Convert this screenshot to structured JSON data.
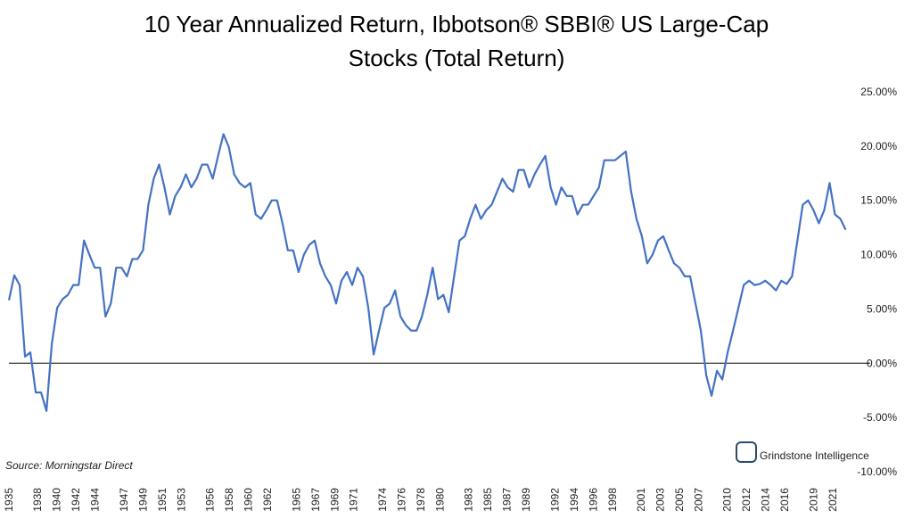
{
  "chart_data": {
    "type": "line",
    "title": "10 Year Annualized Return, Ibbotson® SBBI® US Large-Cap Stocks (Total Return)",
    "source": "Source: Morningstar Direct",
    "logo": "Grindstone Intelligence",
    "xlim": [
      1935,
      2022.5
    ],
    "xticks": [
      1935,
      1938,
      1940,
      1942,
      1944,
      1947,
      1949,
      1951,
      1953,
      1956,
      1958,
      1960,
      1962,
      1965,
      1967,
      1969,
      1971,
      1974,
      1976,
      1978,
      1980,
      1983,
      1985,
      1987,
      1989,
      1992,
      1994,
      1996,
      1998,
      2001,
      2003,
      2005,
      2007,
      2010,
      2012,
      2014,
      2016,
      2019,
      2021
    ],
    "ylim": [
      -10,
      25
    ],
    "yticks": [
      {
        "value": -10,
        "label": "-10.00%"
      },
      {
        "value": -5,
        "label": "-5.00%"
      },
      {
        "value": 0,
        "label": "0.00%"
      },
      {
        "value": 5,
        "label": "5.00%"
      },
      {
        "value": 10,
        "label": "10.00%"
      },
      {
        "value": 15,
        "label": "15.00%"
      },
      {
        "value": 20,
        "label": "20.00%"
      },
      {
        "value": 25,
        "label": "25.00%"
      }
    ],
    "zero_line": true,
    "series": [
      {
        "name": "10 Year Annualized Return",
        "color": "#4472c4",
        "x": [
          1935.0,
          1935.56,
          1936.12,
          1936.68,
          1937.24,
          1937.8,
          1938.36,
          1938.92,
          1939.48,
          1940.04,
          1940.6,
          1941.16,
          1941.72,
          1942.28,
          1942.84,
          1943.4,
          1943.96,
          1944.52,
          1945.08,
          1945.64,
          1946.2,
          1946.76,
          1947.32,
          1947.88,
          1948.44,
          1949.0,
          1949.56,
          1950.12,
          1950.68,
          1951.24,
          1951.8,
          1952.36,
          1952.92,
          1953.48,
          1954.04,
          1954.6,
          1955.16,
          1955.72,
          1956.28,
          1956.84,
          1957.4,
          1957.96,
          1958.52,
          1959.08,
          1959.64,
          1960.2,
          1960.76,
          1961.32,
          1961.88,
          1962.44,
          1963.0,
          1963.56,
          1964.12,
          1964.68,
          1965.24,
          1965.8,
          1966.36,
          1966.92,
          1967.48,
          1968.04,
          1968.6,
          1969.16,
          1969.72,
          1970.28,
          1970.84,
          1971.4,
          1971.96,
          1972.52,
          1973.08,
          1973.64,
          1974.2,
          1974.76,
          1975.32,
          1975.88,
          1976.44,
          1977.0,
          1977.56,
          1978.12,
          1978.68,
          1979.24,
          1979.8,
          1980.36,
          1980.92,
          1981.48,
          1982.04,
          1982.6,
          1983.16,
          1983.72,
          1984.28,
          1984.84,
          1985.4,
          1985.96,
          1986.52,
          1987.08,
          1987.64,
          1988.2,
          1988.76,
          1989.32,
          1989.88,
          1990.44,
          1991.0,
          1991.56,
          1992.12,
          1992.68,
          1993.24,
          1993.8,
          1994.36,
          1994.92,
          1995.48,
          1996.04,
          1996.6,
          1997.16,
          1997.72,
          1998.28,
          1998.84,
          1999.4,
          1999.96,
          2000.52,
          2001.08,
          2001.64,
          2002.2,
          2002.76,
          2003.32,
          2003.88,
          2004.44,
          2005.0,
          2005.56,
          2006.12,
          2006.68,
          2007.24,
          2007.8,
          2008.36,
          2008.92,
          2009.48,
          2010.04,
          2010.6,
          2011.16,
          2011.72,
          2012.28,
          2012.84,
          2013.4,
          2013.96,
          2014.52,
          2015.08,
          2015.64,
          2016.2,
          2016.76,
          2017.32,
          2017.88,
          2018.44,
          2019.0,
          2019.56,
          2020.12,
          2020.68,
          2021.24,
          2021.8,
          2022.36
        ],
        "values": [
          5.8,
          8.1,
          7.2,
          0.6,
          1.0,
          -2.7,
          -2.7,
          -4.4,
          1.8,
          5.1,
          5.9,
          6.3,
          7.2,
          7.2,
          11.3,
          10.0,
          8.8,
          8.8,
          4.3,
          5.5,
          8.8,
          8.8,
          8.0,
          9.6,
          9.6,
          10.4,
          14.6,
          17.0,
          18.3,
          16.2,
          13.7,
          15.4,
          16.2,
          17.4,
          16.2,
          17.0,
          18.3,
          18.3,
          17.0,
          19.1,
          21.1,
          19.9,
          17.4,
          16.6,
          16.2,
          16.6,
          13.7,
          13.3,
          14.1,
          15.0,
          15.0,
          12.9,
          10.4,
          10.4,
          8.4,
          10.0,
          10.9,
          11.3,
          9.2,
          8.0,
          7.2,
          5.5,
          7.6,
          8.4,
          7.2,
          8.8,
          8.0,
          5.1,
          0.8,
          3.0,
          5.1,
          5.5,
          6.7,
          4.3,
          3.5,
          3.0,
          3.0,
          4.3,
          6.3,
          8.8,
          5.9,
          6.3,
          4.7,
          8.0,
          11.3,
          11.7,
          13.3,
          14.6,
          13.3,
          14.1,
          14.6,
          15.8,
          17.0,
          16.2,
          15.8,
          17.8,
          17.8,
          16.2,
          17.4,
          18.3,
          19.1,
          16.2,
          14.6,
          16.2,
          15.4,
          15.4,
          13.7,
          14.6,
          14.6,
          15.4,
          16.2,
          18.7,
          18.7,
          18.7,
          19.1,
          19.5,
          15.8,
          13.3,
          11.7,
          9.2,
          10.0,
          11.3,
          11.7,
          10.4,
          9.2,
          8.8,
          8.0,
          8.0,
          5.5,
          3.0,
          -1.1,
          -3.0,
          -0.7,
          -1.5,
          1.0,
          3.0,
          5.1,
          7.2,
          7.6,
          7.2,
          7.3,
          7.6,
          7.2,
          6.7,
          7.6,
          7.3,
          8.0,
          11.3,
          14.6,
          15.0,
          14.1,
          12.9,
          14.1,
          16.6,
          13.7,
          13.3,
          12.3
        ]
      }
    ]
  }
}
